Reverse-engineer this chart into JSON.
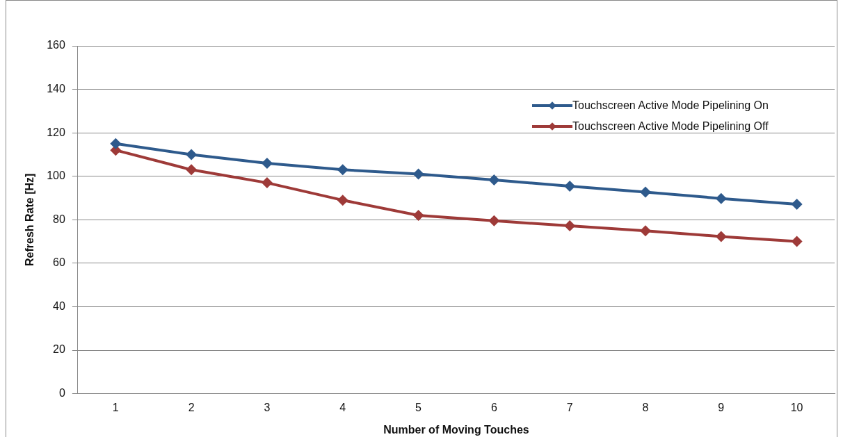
{
  "chart_data": {
    "type": "line",
    "xlabel": "Number of Moving Touches",
    "ylabel": "Refresh Rate [Hz]",
    "categories": [
      "1",
      "2",
      "3",
      "4",
      "5",
      "6",
      "7",
      "8",
      "9",
      "10"
    ],
    "series": [
      {
        "name": "Touchscreen Active Mode Pipelining On",
        "color": "#2e5a8c",
        "values": [
          115,
          110,
          106,
          103,
          101,
          98.3,
          95.4,
          92.7,
          89.8,
          87.1
        ]
      },
      {
        "name": "Touchscreen Active Mode Pipelining Off",
        "color": "#9e3a38",
        "values": [
          112,
          103,
          97,
          89,
          82,
          79.5,
          77.2,
          74.9,
          72.3,
          70
        ]
      }
    ],
    "ylim": [
      0,
      160
    ],
    "yticks": [
      0,
      20,
      40,
      60,
      80,
      100,
      120,
      140,
      160
    ],
    "grid": "y",
    "legend": "right",
    "marker": "diamond",
    "line_style": "solid"
  }
}
